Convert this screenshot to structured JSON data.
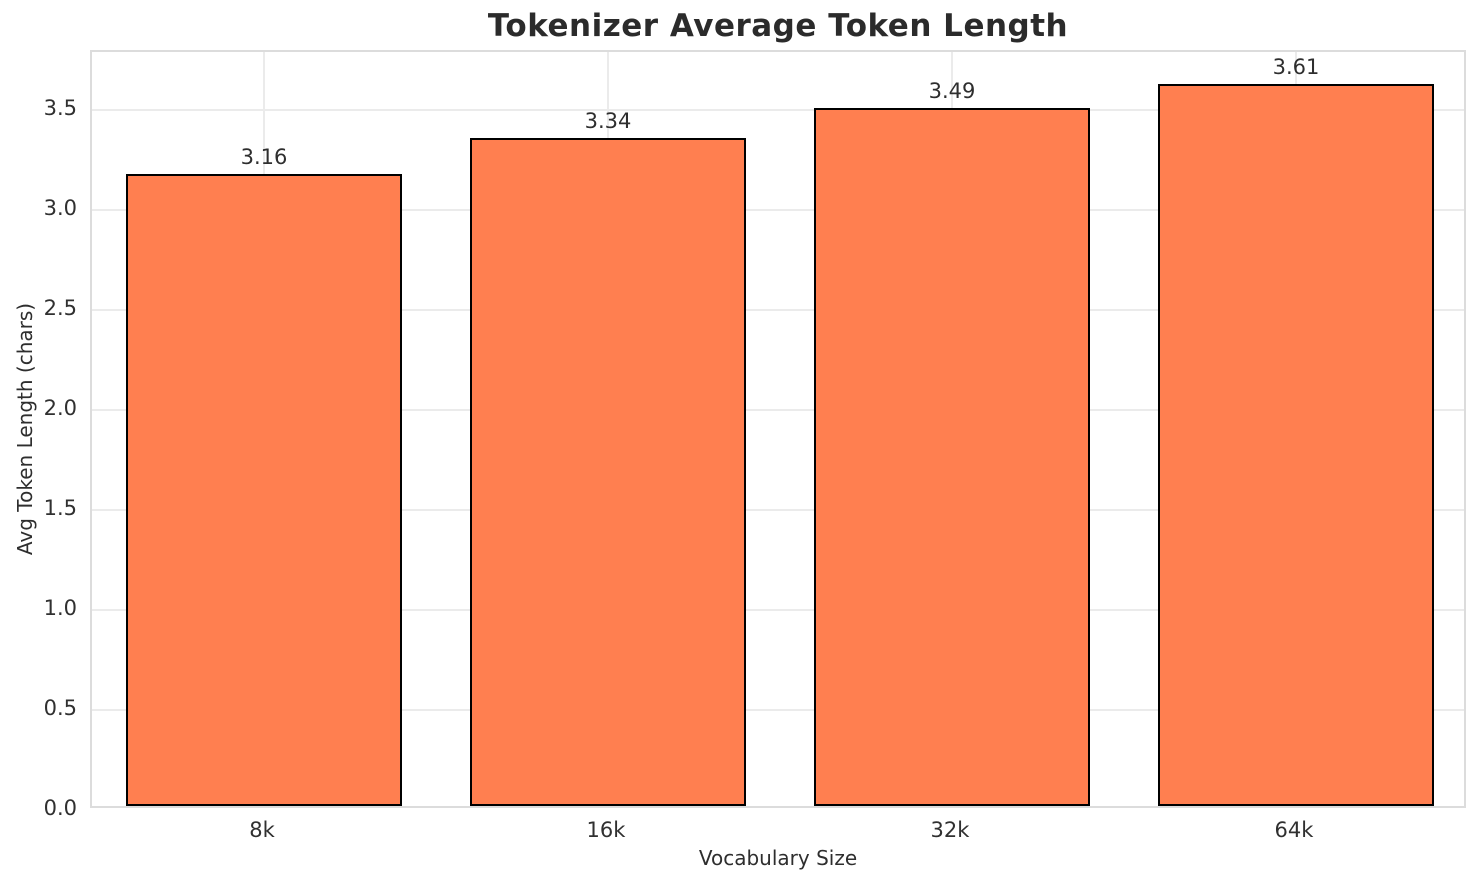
{
  "chart_data": {
    "type": "bar",
    "title": "Tokenizer Average Token Length",
    "xlabel": "Vocabulary Size",
    "ylabel": "Avg Token Length (chars)",
    "categories": [
      "8k",
      "16k",
      "32k",
      "64k"
    ],
    "values": [
      3.16,
      3.34,
      3.49,
      3.61
    ],
    "bar_value_labels": [
      "3.16",
      "3.34",
      "3.49",
      "3.61"
    ],
    "ylim": [
      0,
      3.79
    ],
    "ytick_labels": [
      "0.0",
      "0.5",
      "1.0",
      "1.5",
      "2.0",
      "2.5",
      "3.0",
      "3.5"
    ],
    "ytick_values": [
      0.0,
      0.5,
      1.0,
      1.5,
      2.0,
      2.5,
      3.0,
      3.5
    ],
    "grid": "both",
    "legend_position": "none",
    "colors": {
      "bar_fill": "#FF7F50",
      "bar_edge": "#000000",
      "grid": "#ebebeb",
      "spine": "#dcdcdc",
      "tick_text": "#303030",
      "title_text": "#2b2b2b",
      "background": "#ffffff"
    },
    "bar_width_fraction": 0.8
  }
}
